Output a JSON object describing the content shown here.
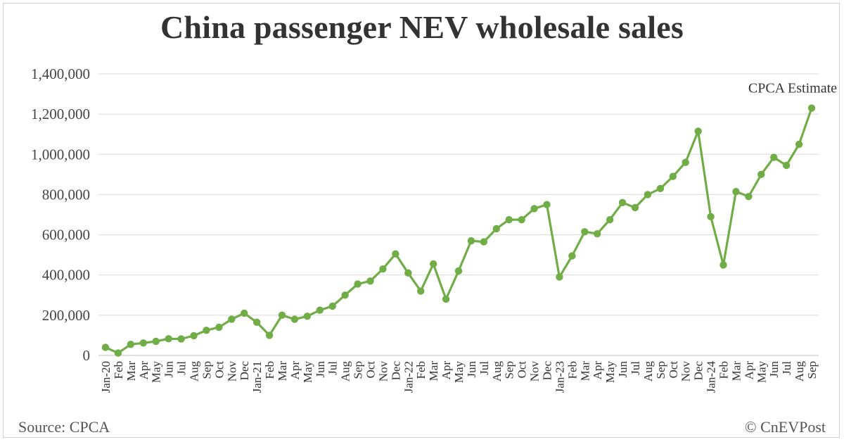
{
  "title": "China passenger NEV wholesale sales",
  "source": "Source: CPCA",
  "credit": "© CnEVPost",
  "chart_data": {
    "type": "line",
    "title": "China passenger NEV wholesale sales",
    "xlabel": "",
    "ylabel": "",
    "ylim": [
      0,
      1400000
    ],
    "y_ticks": [
      "0",
      "200,000",
      "400,000",
      "600,000",
      "800,000",
      "1,000,000",
      "1,200,000",
      "1,400,000"
    ],
    "grid": "horizontal",
    "line_color": "#70ad47",
    "annotation": {
      "text": "CPCA Estimate",
      "point_label": "Sep"
    },
    "x": [
      "Jan-20",
      "Feb",
      "Mar",
      "Apr",
      "May",
      "Jun",
      "Jul",
      "Aug",
      "Sep",
      "Oct",
      "Nov",
      "Dec",
      "Jan-21",
      "Feb",
      "Mar",
      "Apr",
      "May",
      "Jun",
      "Jul",
      "Aug",
      "Sep",
      "Oct",
      "Nov",
      "Dec",
      "Jan-22",
      "Feb",
      "Mar",
      "Apr",
      "May",
      "Jun",
      "Jul",
      "Aug",
      "Sep",
      "Oct",
      "Nov",
      "Dec",
      "Jan-23",
      "Feb",
      "Mar",
      "Apr",
      "May",
      "Jun",
      "Jul",
      "Aug",
      "Sep",
      "Oct",
      "Nov",
      "Dec",
      "Jan-24",
      "Feb",
      "Mar",
      "Apr",
      "May",
      "Jun",
      "Jul",
      "Aug",
      "Sep"
    ],
    "series": [
      {
        "values": [
          40000,
          12000,
          55000,
          62000,
          70000,
          83000,
          82000,
          98000,
          125000,
          140000,
          180000,
          210000,
          165000,
          100000,
          200000,
          180000,
          195000,
          225000,
          245000,
          300000,
          355000,
          370000,
          430000,
          505000,
          410000,
          320000,
          455000,
          280000,
          420000,
          570000,
          565000,
          630000,
          675000,
          675000,
          730000,
          750000,
          390000,
          495000,
          615000,
          605000,
          675000,
          760000,
          735000,
          800000,
          830000,
          890000,
          960000,
          1115000,
          690000,
          450000,
          815000,
          790000,
          900000,
          985000,
          945000,
          1050000,
          1230000
        ]
      }
    ]
  }
}
